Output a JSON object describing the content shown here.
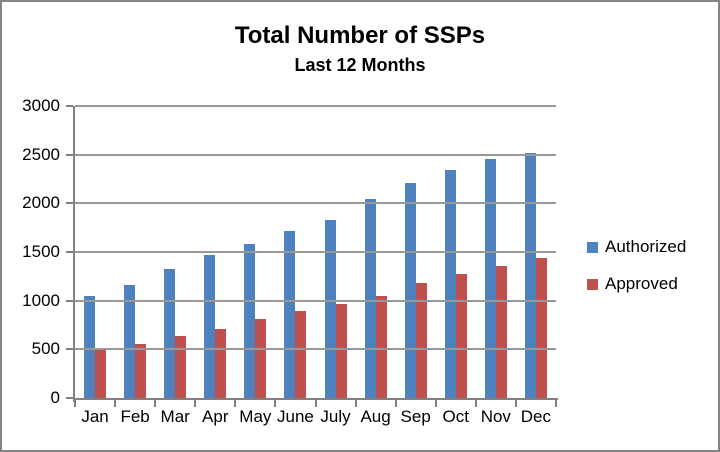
{
  "chart_data": {
    "type": "bar",
    "title": "Total Number of SSPs",
    "subtitle": "Last 12 Months",
    "categories": [
      "Jan",
      "Feb",
      "Mar",
      "Apr",
      "May",
      "June",
      "July",
      "Aug",
      "Sep",
      "Oct",
      "Nov",
      "Dec"
    ],
    "series": [
      {
        "name": "Authorized",
        "color": "#4F81BD",
        "values": [
          1050,
          1160,
          1330,
          1470,
          1580,
          1720,
          1830,
          2040,
          2210,
          2340,
          2460,
          2520
        ]
      },
      {
        "name": "Approved",
        "color": "#C0504D",
        "values": [
          500,
          550,
          640,
          710,
          810,
          890,
          970,
          1050,
          1180,
          1270,
          1360,
          1440
        ]
      }
    ],
    "ylim": [
      0,
      3000
    ],
    "yticks": [
      0,
      500,
      1000,
      1500,
      2000,
      2500,
      3000
    ],
    "xlabel": "",
    "ylabel": "",
    "grid": "horizontal",
    "legend_position": "right"
  },
  "colors": {
    "grid_color": "#999999",
    "axis_color": "#808080",
    "frame_border_color": "#848484",
    "background": "#FFFFFF",
    "text_color": "#000000"
  }
}
